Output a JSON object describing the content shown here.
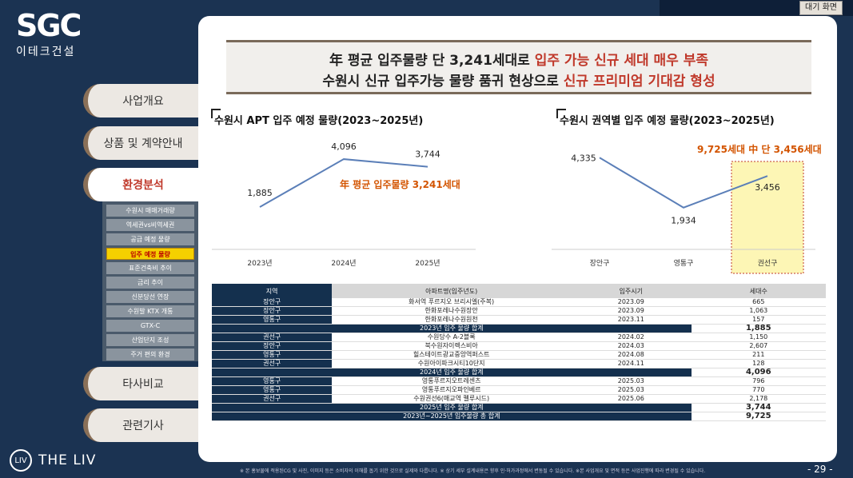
{
  "topbar": {
    "standby_label": "대기 화면"
  },
  "logo": {
    "main": "SGC",
    "sub": "이테크건설"
  },
  "brand2": {
    "icon": "LIV",
    "name": "THE LIV"
  },
  "menu": [
    {
      "label": "사업개요",
      "active": false
    },
    {
      "label": "상품 및 계약안내",
      "active": false
    },
    {
      "label": "환경분석",
      "active": true
    },
    {
      "label": "타사비교",
      "active": false
    },
    {
      "label": "관련기사",
      "active": false
    }
  ],
  "submenu": [
    {
      "label": "수원시 매매거래량",
      "active": false
    },
    {
      "label": "역세권vs비역세권",
      "active": false
    },
    {
      "label": "공급 예정 물량",
      "active": false
    },
    {
      "label": "입주 예정 물량",
      "active": true
    },
    {
      "label": "표준건축비 추이",
      "active": false
    },
    {
      "label": "금리 추이",
      "active": false
    },
    {
      "label": "신분당선 연장",
      "active": false
    },
    {
      "label": "수원발 KTX 개통",
      "active": false
    },
    {
      "label": "GTX-C",
      "active": false
    },
    {
      "label": "산업단지 조성",
      "active": false
    },
    {
      "label": "주거 편의 환경",
      "active": false
    }
  ],
  "headline": {
    "line1_pre": "年 평균 입주물량 단 3,241세대로 ",
    "line1_red": "입주 가능 신규 세대 매우 부족",
    "line2_pre": "수원시 신규 입주가능 물량 품귀 현상으로 ",
    "line2_red": "신규 프리미엄 기대감 형성"
  },
  "chart_left": {
    "title": "수원시 APT 입주 예정 물량(2023~2025년)",
    "annotation": "年 평균 입주물량 3,241세대"
  },
  "chart_right": {
    "title": "수원시 권역별 입주 예정 물량(2023~2025년)",
    "annotation": "9,725세대 中 단 3,456세대"
  },
  "chart_data": [
    {
      "type": "line",
      "title": "수원시 APT 입주 예정 물량(2023~2025년)",
      "categories": [
        "2023년",
        "2024년",
        "2025년"
      ],
      "values": [
        1885,
        4096,
        3744
      ],
      "labels": [
        "1,885",
        "4,096",
        "3,744"
      ],
      "color": "#5b7fb8"
    },
    {
      "type": "line",
      "title": "수원시 권역별 입주 예정 물량(2023~2025년)",
      "categories": [
        "장안구",
        "영통구",
        "권선구"
      ],
      "values": [
        4335,
        1934,
        3456
      ],
      "labels": [
        "4,335",
        "1,934",
        "3,456"
      ],
      "highlight": "권선구",
      "color": "#5b7fb8"
    }
  ],
  "table": {
    "headers": [
      "지역",
      "아파트명(입주년도)",
      "입주시기",
      "세대수"
    ],
    "rows": [
      {
        "region": "장안구",
        "name": "화서역 푸르지오 브리시엘(주복)",
        "date": "2023.09",
        "units": "665"
      },
      {
        "region": "장안구",
        "name": "한화포레나수원장안",
        "date": "2023.09",
        "units": "1,063"
      },
      {
        "region": "영통구",
        "name": "한화포레나수원원천",
        "date": "2023.11",
        "units": "157"
      },
      {
        "sum": true,
        "label": "2023년 입주 물량 합계",
        "units": "1,885"
      },
      {
        "region": "권선구",
        "name": "수원당수 A-2블록",
        "date": "2024.02",
        "units": "1,150"
      },
      {
        "region": "장안구",
        "name": "북수원자이렉스비아",
        "date": "2024.03",
        "units": "2,607"
      },
      {
        "region": "영통구",
        "name": "힐스테이트광교중앙역퍼스트",
        "date": "2024.08",
        "units": "211"
      },
      {
        "region": "권선구",
        "name": "수원아이파크시티10단지",
        "date": "2024.11",
        "units": "128"
      },
      {
        "sum": true,
        "label": "2024년 입주 물량 합계",
        "units": "4,096"
      },
      {
        "region": "영통구",
        "name": "영통푸르지오트레센츠",
        "date": "2025.03",
        "units": "796"
      },
      {
        "region": "영통구",
        "name": "영통푸르지오파인베르",
        "date": "2025.03",
        "units": "770"
      },
      {
        "region": "권선구",
        "name": "수원권선6(매교역 펠루시드)",
        "date": "2025.06",
        "units": "2,178"
      },
      {
        "sum": true,
        "label": "2025년 입주 물량 합계",
        "units": "3,744"
      },
      {
        "sum": true,
        "label": "2023년~2025년 입주물량 총 합계",
        "units": "9,725"
      }
    ]
  },
  "footer": {
    "note": "※ 본 홍보물에 적용된CG 및 사진, 이미지 등은 소비자의 이해를 돕기 위한 것으로 실제와 다릅니다. ※ 상기 세부 설계내용은 향후 인·허가과정에서 변동될 수 있습니다. ※본 사업개요 및 면적 등은 사업진행에 따라 변경될 수 있습니다.",
    "page": "- 29 -"
  }
}
